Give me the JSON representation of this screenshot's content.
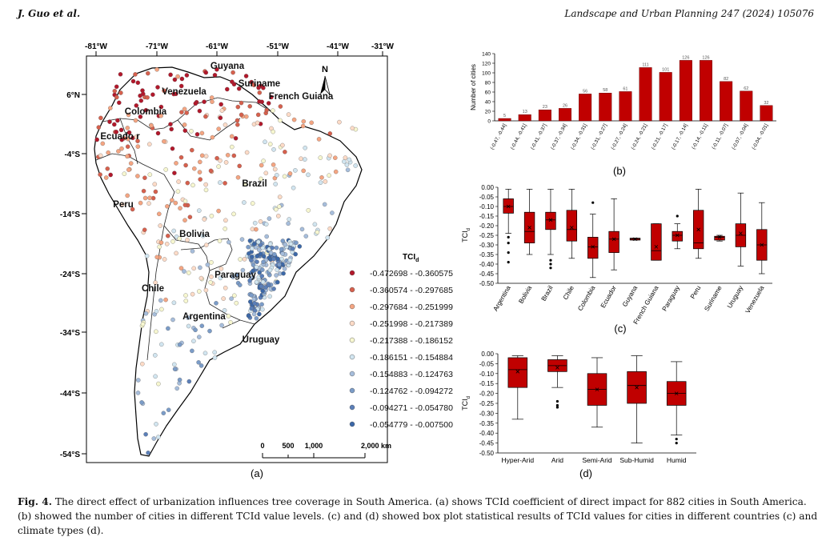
{
  "header": {
    "left": "J. Guo et al.",
    "right": "Landscape and Urban Planning 247 (2024) 105076"
  },
  "map": {
    "panel_label": "(a)",
    "lon_ticks": [
      "-81°W",
      "-71°W",
      "-61°W",
      "-51°W",
      "-41°W",
      "-31°W"
    ],
    "lat_ticks": [
      "6°N",
      "-4°S",
      "-14°S",
      "-24°S",
      "-34°S",
      "-44°S",
      "-54°S"
    ],
    "countries": [
      "Guyana",
      "Suriname",
      "French Guiana",
      "Venezuela",
      "Colombia",
      "Ecuado r",
      "Brazil",
      "Peru",
      "Bolivia",
      "Paraguay",
      "Chile",
      "Argentina",
      "Uruguay"
    ],
    "north": "N",
    "scale": [
      "0",
      "500",
      "1,000",
      "2,000 km"
    ],
    "legend_title": "TCI",
    "legend_title_sub": "d",
    "legend": [
      {
        "label": "-0.472698 - -0.360575",
        "color": "#b2182b"
      },
      {
        "label": "-0.360574 - -0.297685",
        "color": "#d6604d"
      },
      {
        "label": "-0.297684 - -0.251999",
        "color": "#f4a582"
      },
      {
        "label": "-0.251998 - -0.217389",
        "color": "#fddbc7"
      },
      {
        "label": "-0.217388 - -0.186152",
        "color": "#f7f7d0"
      },
      {
        "label": "-0.186151 - -0.154884",
        "color": "#d1e5f0"
      },
      {
        "label": "-0.154883 - -0.124763",
        "color": "#a6bddb"
      },
      {
        "label": "-0.124762 - -0.094272",
        "color": "#7b9cc8"
      },
      {
        "label": "-0.094271 - -0.054780",
        "color": "#5b7fb8"
      },
      {
        "label": "-0.054779 - -0.007500",
        "color": "#3c68a8"
      }
    ]
  },
  "chart_data": [
    {
      "panel": "(b)",
      "type": "bar",
      "ylabel": "Number of cities",
      "ylim": [
        0,
        140
      ],
      "yticks": [
        "0",
        "20",
        "40",
        "60",
        "80",
        "100",
        "120",
        "140"
      ],
      "categories": [
        "(-0.47, -0.44]",
        "(-0.44, -0.41]",
        "(-0.41, -0.37]",
        "(-0.37, -0.34]",
        "(-0.34, -0.31]",
        "(-0.31, -0.27]",
        "(-0.27, -0.24]",
        "(-0.24, -0.21]",
        "(-0.21, -0.17]",
        "(-0.17, -0.14]",
        "(-0.14, -0.11]",
        "(-0.11, -0.07]",
        "(-0.07, -0.04]",
        "(-0.04, -0.01]"
      ],
      "values": [
        5,
        13,
        23,
        26,
        56,
        58,
        61,
        111,
        101,
        126,
        126,
        82,
        62,
        32
      ],
      "bar_color": "#c00000"
    },
    {
      "panel": "(c)",
      "type": "box",
      "ylabel": "TCI",
      "ylabel_sub": "d",
      "ylim": [
        -0.5,
        0
      ],
      "yticks": [
        "0.00",
        "-0.05",
        "-0.10",
        "-0.15",
        "-0.20",
        "-0.25",
        "-0.30",
        "-0.35",
        "-0.40",
        "-0.45",
        "-0.50"
      ],
      "categories": [
        "Argentina",
        "Bolivia",
        "Brazil",
        "Chile",
        "Colombia",
        "Ecuador",
        "Guyana",
        "French Guiana",
        "Paraguay",
        "Peru",
        "Suriname",
        "Uruguay",
        "Venezuela"
      ],
      "boxes": [
        {
          "min": -0.24,
          "q1": -0.135,
          "median": -0.1,
          "q3": -0.06,
          "max": -0.01,
          "mean": -0.1,
          "outliers": [
            -0.26,
            -0.29,
            -0.34,
            -0.39
          ]
        },
        {
          "min": -0.35,
          "q1": -0.29,
          "median": -0.23,
          "q3": -0.13,
          "max": -0.01,
          "mean": -0.21,
          "outliers": []
        },
        {
          "min": -0.35,
          "q1": -0.22,
          "median": -0.17,
          "q3": -0.13,
          "max": -0.01,
          "mean": -0.17,
          "outliers": [
            -0.38,
            -0.4,
            -0.42
          ]
        },
        {
          "min": -0.37,
          "q1": -0.28,
          "median": -0.22,
          "q3": -0.12,
          "max": -0.01,
          "mean": -0.21,
          "outliers": []
        },
        {
          "min": -0.47,
          "q1": -0.37,
          "median": -0.31,
          "q3": -0.26,
          "max": -0.14,
          "mean": -0.31,
          "outliers": [
            -0.08
          ]
        },
        {
          "min": -0.43,
          "q1": -0.34,
          "median": -0.27,
          "q3": -0.23,
          "max": -0.06,
          "mean": -0.27,
          "outliers": []
        },
        {
          "min": -0.275,
          "q1": -0.275,
          "median": -0.27,
          "q3": -0.265,
          "max": -0.265,
          "mean": -0.27,
          "outliers": []
        },
        {
          "min": -0.38,
          "q1": -0.38,
          "median": -0.33,
          "q3": -0.19,
          "max": -0.19,
          "mean": -0.31,
          "outliers": []
        },
        {
          "min": -0.32,
          "q1": -0.28,
          "median": -0.25,
          "q3": -0.23,
          "max": -0.19,
          "mean": -0.25,
          "outliers": [
            -0.15
          ]
        },
        {
          "min": -0.37,
          "q1": -0.32,
          "median": -0.29,
          "q3": -0.12,
          "max": -0.01,
          "mean": -0.22,
          "outliers": []
        },
        {
          "min": -0.28,
          "q1": -0.275,
          "median": -0.26,
          "q3": -0.255,
          "max": -0.25,
          "mean": -0.26,
          "outliers": []
        },
        {
          "min": -0.41,
          "q1": -0.31,
          "median": -0.25,
          "q3": -0.19,
          "max": -0.03,
          "mean": -0.24,
          "outliers": []
        },
        {
          "min": -0.45,
          "q1": -0.38,
          "median": -0.3,
          "q3": -0.22,
          "max": -0.08,
          "mean": -0.3,
          "outliers": []
        }
      ],
      "box_color": "#c00000"
    },
    {
      "panel": "(d)",
      "type": "box",
      "ylabel": "TCI",
      "ylabel_sub": "d",
      "ylim": [
        -0.5,
        0
      ],
      "yticks": [
        "0.00",
        "-0.05",
        "-0.10",
        "-0.15",
        "-0.20",
        "-0.25",
        "-0.30",
        "-0.35",
        "-0.40",
        "-0.45",
        "-0.50"
      ],
      "categories": [
        "Hyper-Arid",
        "Arid",
        "Semi-Arid",
        "Sub-Humid",
        "Humid"
      ],
      "boxes": [
        {
          "min": -0.33,
          "q1": -0.17,
          "median": -0.08,
          "q3": -0.02,
          "max": -0.01,
          "mean": -0.09,
          "outliers": []
        },
        {
          "min": -0.17,
          "q1": -0.09,
          "median": -0.06,
          "q3": -0.03,
          "max": -0.01,
          "mean": -0.07,
          "outliers": [
            -0.24,
            -0.26,
            -0.27
          ]
        },
        {
          "min": -0.37,
          "q1": -0.26,
          "median": -0.18,
          "q3": -0.1,
          "max": -0.02,
          "mean": -0.18,
          "outliers": []
        },
        {
          "min": -0.45,
          "q1": -0.25,
          "median": -0.16,
          "q3": -0.09,
          "max": -0.01,
          "mean": -0.17,
          "outliers": []
        },
        {
          "min": -0.41,
          "q1": -0.26,
          "median": -0.2,
          "q3": -0.14,
          "max": -0.04,
          "mean": -0.2,
          "outliers": [
            -0.43,
            -0.45
          ]
        }
      ],
      "box_color": "#c00000"
    }
  ],
  "caption": {
    "fig": "Fig. 4.",
    "text": "The direct effect of urbanization influences tree coverage in South America. (a) shows TCId coefficient of direct impact for 882 cities in South America. (b) showed the number of cities in different TCId value levels. (c) and (d) showed box plot statistical results of TCId values for cities in different countries (c) and climate types (d)."
  }
}
